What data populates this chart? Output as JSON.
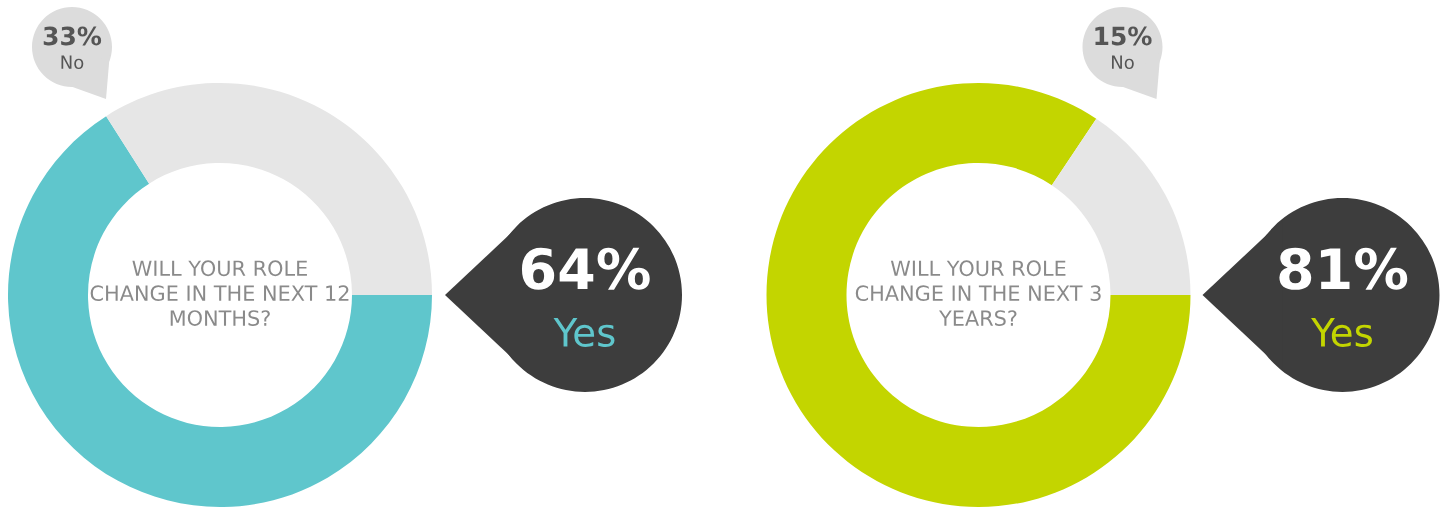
{
  "chart_data": [
    {
      "type": "donut",
      "title": "WILL YOUR ROLE CHANGE IN THE NEXT 12 MONTHS?",
      "categories": [
        "Yes",
        "No"
      ],
      "values": [
        64,
        33
      ],
      "colors": [
        "#5fc6cc",
        "#e6e6e6"
      ],
      "value_labels": [
        "64%",
        "33%"
      ]
    },
    {
      "type": "donut",
      "title": "WILL YOUR ROLE CHANGE IN THE NEXT 3 YEARS?",
      "categories": [
        "Yes",
        "No"
      ],
      "values": [
        81,
        15
      ],
      "colors": [
        "#c3d500",
        "#e6e6e6"
      ],
      "value_labels": [
        "81%",
        "15%"
      ]
    }
  ]
}
